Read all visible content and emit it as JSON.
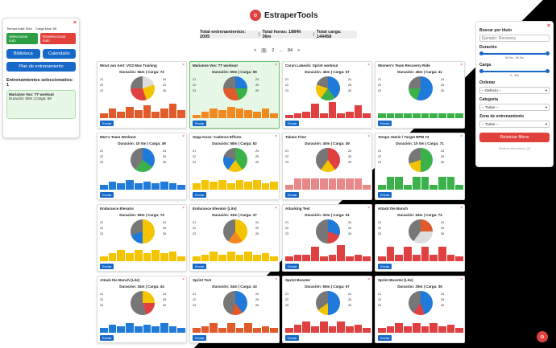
{
  "header": {
    "title": "EstraperTools",
    "logo_icon": "bike-icon"
  },
  "stats": {
    "workouts": "Total entrenamientos: 2005",
    "hours": "Total horas: 1884h 36m",
    "load": "Total carga: 144458"
  },
  "pager": {
    "prev": "<",
    "p1": "1",
    "p2": "2",
    "dots": "...",
    "last": "84",
    "next": ">"
  },
  "left": {
    "close": "×",
    "total_time": "Tiempo total: 50m",
    "total_load": "Carga total: 59",
    "select_all": "Seleccionar todo",
    "deselect_all": "Deseleccionar todo",
    "library": "Biblioteca",
    "calendar": "Calendario",
    "plan": "Plan de entrenamiento",
    "selected": "Entrenamientos seleccionados: 1",
    "mini_title": "Marianne Vos: TT workout",
    "mini_meta": "Duración: 50m | Carga: 59"
  },
  "right": {
    "search_label": "Buscar por título",
    "search_placeholder": "Ejemplo: Recovery",
    "dur_label": "Duración",
    "dur_range": "0h 0m - 9h 0m",
    "load_label": "Carga",
    "load_range": "0 - 300",
    "order_label": "Ordenar",
    "order_val": "-- Defecto --",
    "cat_label": "Categoría",
    "cat_val": "-- Todas --",
    "zone_label": "Zona de entrenamiento",
    "zone_val": "-- Todos --",
    "reset": "Reiniciar filtros",
    "show_deleted": "Mostrar eliminados (0)"
  },
  "cards": [
    {
      "title": "Wout van Aert: VO2 Max Training",
      "meta": "Duración: 56m | Carga: 72",
      "sel": false,
      "pie": "#ddd 0 20%,#f5c400 20% 45%,#e04040 45% 75%,#777 75% 100%",
      "bars": [
        3,
        6,
        4,
        7,
        5,
        8,
        4,
        6,
        9,
        5
      ],
      "color": "#e05a2a",
      "enviar": "Enviar"
    },
    {
      "title": "Marianne Vos: TT workout",
      "meta": "Duración: 50m | Carga: 59",
      "sel": true,
      "pie": "#1f7ad9 0 25%,#3bb14a 25% 45%,#e05a2a 45% 75%,#777 75% 100%",
      "bars": [
        2,
        4,
        6,
        5,
        7,
        6,
        5,
        4,
        6,
        3
      ],
      "color": "#f08a20",
      "enviar": "Enviar"
    },
    {
      "title": "Coryn Labecki: Sprint workout",
      "meta": "Duración: 45m | Carga: 57",
      "sel": false,
      "pie": "#1f7ad9 0 40%,#3bb14a 40% 60%,#f5c400 60% 80%,#777 80% 100%",
      "bars": [
        2,
        3,
        4,
        9,
        3,
        10,
        3,
        4,
        8,
        3
      ],
      "color": "#e04040",
      "enviar": "Enviar"
    },
    {
      "title": "Women's Team Recovery Ride",
      "meta": "Duración: 45m | Carga: 41",
      "sel": false,
      "pie": "#1f7ad9 0 55%,#3bb14a 55% 75%,#777 75% 100%",
      "bars": [
        3,
        3,
        3,
        3,
        3,
        3,
        3,
        3,
        3,
        3
      ],
      "color": "#3bb14a",
      "enviar": "Enviar"
    },
    {
      "title": "Men's Team Workout",
      "meta": "Duración: 1h 0m | Carga: 49",
      "sel": false,
      "pie": "#1f7ad9 0 35%,#3bb14a 35% 60%,#777 60% 100%",
      "bars": [
        3,
        5,
        4,
        6,
        4,
        5,
        4,
        5,
        4,
        3
      ],
      "color": "#1f7ad9",
      "enviar": "Enviar"
    },
    {
      "title": "Sepp Kuss: Cadence Efforts",
      "meta": "Duración: 58m | Carga: 62",
      "sel": false,
      "pie": "#3bb14a 0 40%,#f5c400 40% 60%,#1f7ad9 60% 80%,#777 80% 100%",
      "bars": [
        4,
        6,
        5,
        6,
        4,
        6,
        5,
        6,
        4,
        5
      ],
      "color": "#f5c400",
      "enviar": "Enviar"
    },
    {
      "title": "Tabata Time",
      "meta": "Duración: 40m | Carga: 49",
      "sel": false,
      "pie": "#e04040 0 40%,#f5c400 40% 60%,#777 60% 100%",
      "bars": [
        3,
        7,
        7,
        7,
        7,
        7,
        7,
        7,
        7,
        3
      ],
      "color": "#e88888",
      "enviar": "Enviar"
    },
    {
      "title": "Tempo 15min / Target RPM #3",
      "meta": "Duración: 1h 0m | Carga: 71",
      "sel": false,
      "pie": "#3bb14a 0 50%,#f5c400 50% 70%,#777 70% 100%",
      "bars": [
        3,
        8,
        8,
        3,
        8,
        8,
        3,
        8,
        8,
        3
      ],
      "color": "#3bb14a",
      "enviar": "Enviar"
    },
    {
      "title": "Endurance Elevator",
      "meta": "Duración: 59m | Carga: 74",
      "sel": false,
      "pie": "#f5c400 0 50%,#1f7ad9 50% 70%,#777 70% 100%",
      "bars": [
        3,
        5,
        7,
        5,
        7,
        5,
        7,
        5,
        6,
        3
      ],
      "color": "#f5c400",
      "enviar": "Enviar"
    },
    {
      "title": "Endurance Elevator [Lite]",
      "meta": "Duración: 33m | Carga: 37",
      "sel": false,
      "pie": "#f5c400 0 40%,#f08a20 40% 60%,#777 60% 100%",
      "bars": [
        3,
        4,
        6,
        4,
        6,
        4,
        6,
        4,
        5,
        3
      ],
      "color": "#f5c400",
      "enviar": "Enviar"
    },
    {
      "title": "Attacking Test",
      "meta": "Duración: 32m | Carga: 51",
      "sel": false,
      "pie": "#1f7ad9 0 30%,#e04040 30% 50%,#777 50% 100%",
      "bars": [
        3,
        4,
        4,
        9,
        3,
        4,
        10,
        3,
        4,
        3
      ],
      "color": "#e04040",
      "enviar": "Enviar"
    },
    {
      "title": "Attack the Bunch",
      "meta": "Duración: 53m | Carga: 74",
      "sel": false,
      "pie": "#e05a2a 0 25%,#ddd 25% 60%,#777 60% 100%",
      "bars": [
        3,
        9,
        4,
        9,
        4,
        9,
        4,
        9,
        4,
        3
      ],
      "color": "#e04040",
      "enviar": "Enviar"
    },
    {
      "title": "Attack the Bunch [Lite]",
      "meta": "Duración: 34m | Carga: 44",
      "sel": false,
      "pie": "#f5c400 0 25%,#e04040 25% 45%,#777 45% 100%",
      "bars": [
        3,
        5,
        4,
        6,
        4,
        5,
        4,
        6,
        4,
        3
      ],
      "color": "#1f7ad9",
      "enviar": "Enviar"
    },
    {
      "title": "Sprint Test",
      "meta": "Duración: 34m | Carga: 43",
      "sel": false,
      "pie": "#1f7ad9 0 40%,#e05a2a 40% 55%,#777 55% 100%",
      "bars": [
        3,
        4,
        6,
        3,
        6,
        3,
        6,
        3,
        4,
        3
      ],
      "color": "#e05a2a",
      "enviar": "Enviar"
    },
    {
      "title": "Sprint Booster",
      "meta": "Duración: 55m | Carga: 67",
      "sel": false,
      "pie": "#1f7ad9 0 50%,#f5c400 50% 65%,#777 65% 100%",
      "bars": [
        3,
        5,
        7,
        4,
        7,
        4,
        7,
        4,
        5,
        3
      ],
      "color": "#e04040",
      "enviar": "Enviar"
    },
    {
      "title": "Sprint Booster [Lite]",
      "meta": "Duración: 29m | Carga: 36",
      "sel": false,
      "pie": "#1f7ad9 0 45%,#e04040 45% 60%,#777 60% 100%",
      "bars": [
        3,
        4,
        6,
        4,
        6,
        4,
        6,
        4,
        5,
        3
      ],
      "color": "#e04040",
      "enviar": "Enviar"
    }
  ],
  "zones_left": [
    "Z1",
    "Z2",
    "Z3"
  ],
  "zones_right": [
    "Z4",
    "Z5",
    "Z6"
  ]
}
